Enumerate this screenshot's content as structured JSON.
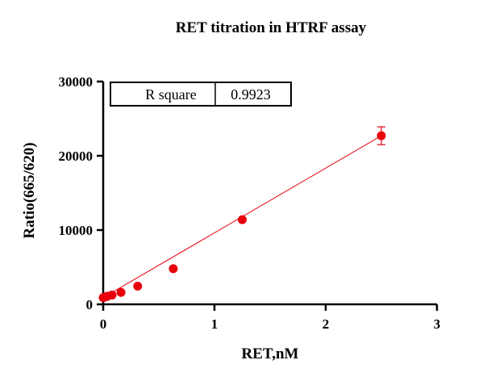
{
  "chart_data": {
    "type": "scatter",
    "title": "RET titration in HTRF assay",
    "xlabel": "RET,nM",
    "ylabel": "Ratio(665/620)",
    "xlim": [
      0,
      3
    ],
    "ylim": [
      0,
      30000
    ],
    "x_ticks": [
      0,
      1,
      2,
      3
    ],
    "y_ticks": [
      0,
      10000,
      20000,
      30000
    ],
    "grid": false,
    "legend": "none",
    "point_color": "#e8000b",
    "line_color": "#e8000b",
    "series": [
      {
        "points": [
          {
            "x": 0.0,
            "y": 900
          },
          {
            "x": 0.02,
            "y": 1000
          },
          {
            "x": 0.04,
            "y": 1100
          },
          {
            "x": 0.08,
            "y": 1250
          },
          {
            "x": 0.16,
            "y": 1600
          },
          {
            "x": 0.31,
            "y": 2450
          },
          {
            "x": 0.63,
            "y": 4800
          },
          {
            "x": 1.25,
            "y": 11400
          },
          {
            "x": 2.5,
            "y": 22700,
            "error": 1200
          }
        ]
      }
    ],
    "fit_line": {
      "x": [
        0,
        2.5
      ],
      "y": [
        900,
        22700
      ]
    },
    "stats_table": {
      "label": "R square",
      "value": "0.9923"
    }
  }
}
